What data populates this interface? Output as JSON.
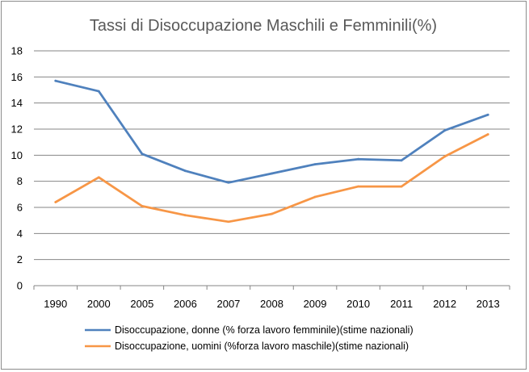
{
  "chart_data": {
    "type": "line",
    "title": "Tassi di Disoccupazione Maschili e Femminili(%)",
    "categories": [
      "1990",
      "2000",
      "2005",
      "2006",
      "2007",
      "2008",
      "2009",
      "2010",
      "2011",
      "2012",
      "2013"
    ],
    "ylim": [
      0,
      18
    ],
    "yticks": [
      0,
      2,
      4,
      6,
      8,
      10,
      12,
      14,
      16,
      18
    ],
    "grid": true,
    "legend_position": "bottom",
    "series": [
      {
        "name": "Disoccupazione, donne (% forza lavoro femminile)(stime nazionali)",
        "color": "#4f81bd",
        "values": [
          15.7,
          14.9,
          10.1,
          8.8,
          7.9,
          8.6,
          9.3,
          9.7,
          9.6,
          11.9,
          13.1
        ]
      },
      {
        "name": "Disoccupazione, uomini (%forza lavoro maschile)(stime nazionali)",
        "color": "#f79646",
        "values": [
          6.4,
          8.3,
          6.1,
          5.4,
          4.9,
          5.5,
          6.8,
          7.6,
          7.6,
          9.9,
          11.6
        ]
      }
    ]
  }
}
